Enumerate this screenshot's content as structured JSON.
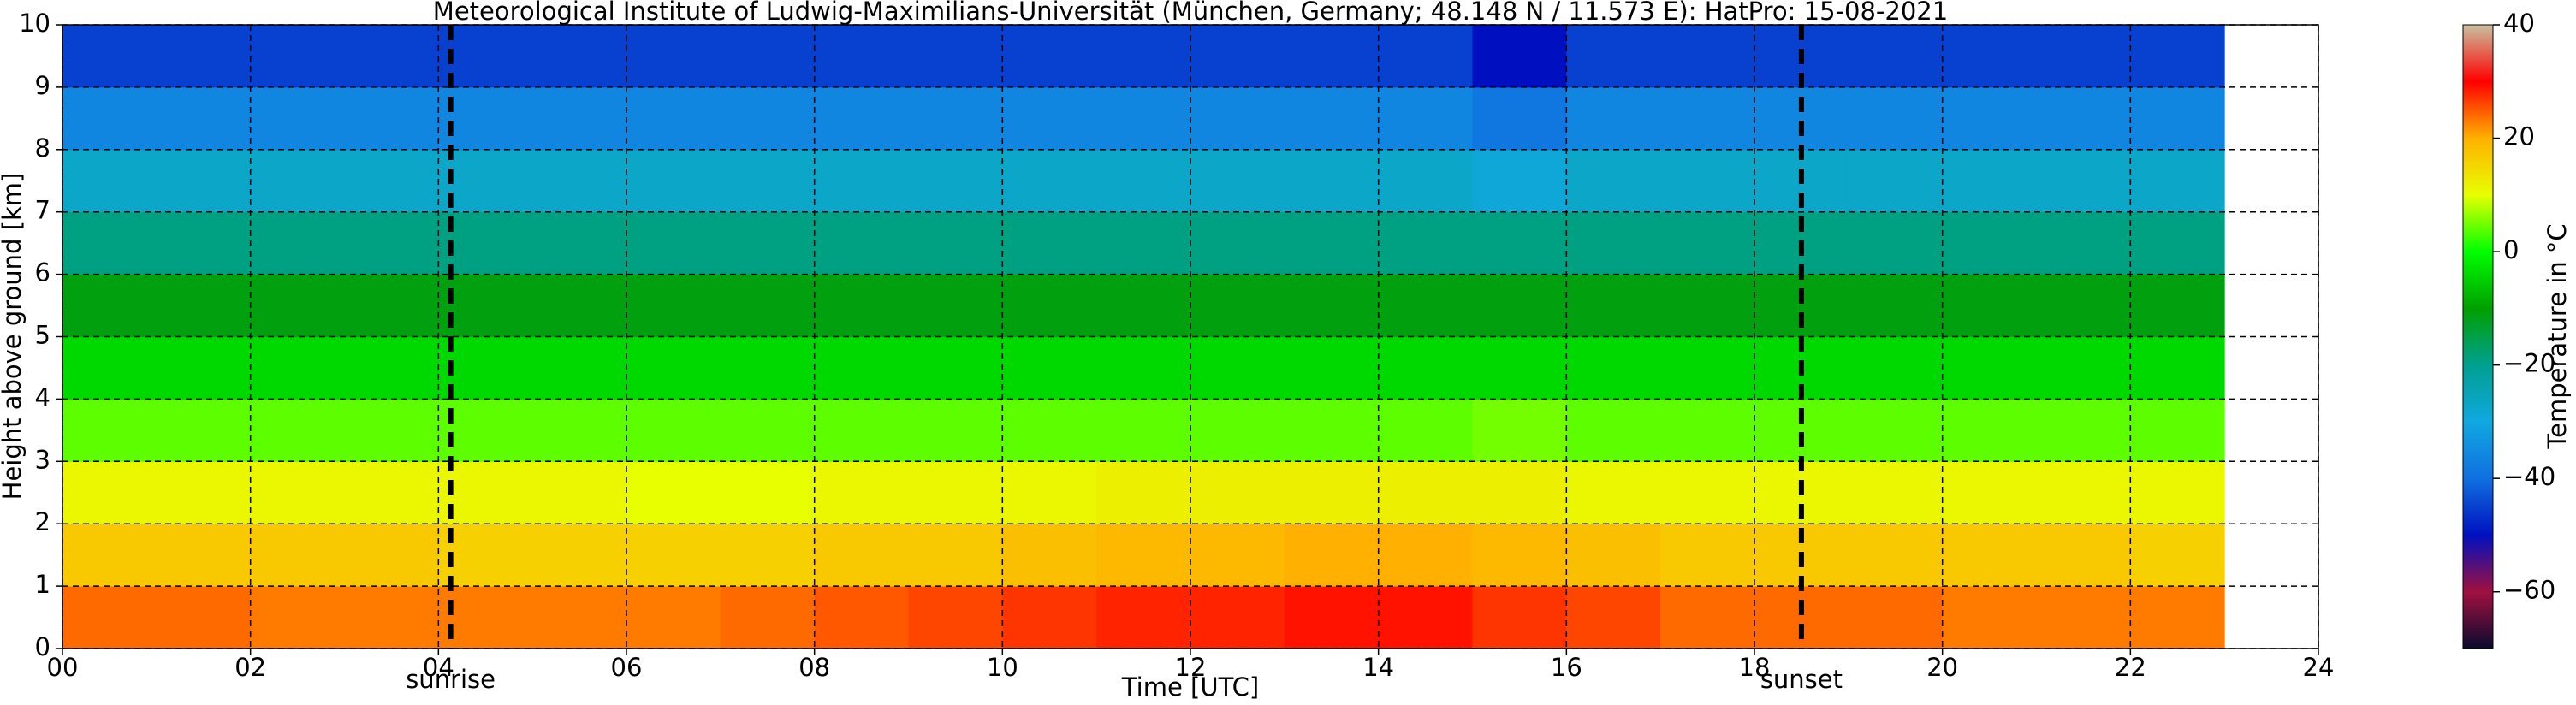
{
  "chart_data": {
    "type": "heatmap",
    "title": "Meteorological Institute of Ludwig-Maximilians-Universität (München, Germany; 48.148 N / 11.573 E):    HatPro: 15-08-2021",
    "xlabel": "Time [UTC]",
    "ylabel": "Height above ground [km]",
    "colorbar_label": "Temperature in °C",
    "x_bins": [
      0,
      1,
      2,
      3,
      4,
      5,
      6,
      7,
      8,
      9,
      10,
      11,
      12,
      13,
      14,
      15,
      16,
      17,
      18,
      19,
      20,
      21,
      22,
      23
    ],
    "y_bins": [
      0,
      1,
      2,
      3,
      4,
      5,
      6,
      7,
      8,
      9,
      10
    ],
    "z": [
      [
        24,
        24,
        23,
        23,
        23,
        23,
        23,
        24,
        25,
        26,
        27,
        28,
        28,
        29,
        29,
        27,
        26,
        24,
        24,
        24,
        23,
        23,
        23
      ],
      [
        17,
        17,
        17,
        17,
        16,
        16,
        16,
        16,
        17,
        17,
        18,
        19,
        19,
        20,
        20,
        19,
        18,
        17,
        17,
        17,
        17,
        17,
        16
      ],
      [
        11,
        11,
        11,
        11,
        11,
        11,
        10,
        10,
        11,
        11,
        11,
        12,
        12,
        12,
        12,
        12,
        11,
        11,
        11,
        11,
        11,
        11,
        11
      ],
      [
        4,
        4,
        4,
        4,
        4,
        4,
        4,
        4,
        4,
        4,
        4,
        4,
        4,
        4,
        4,
        5,
        4,
        4,
        4,
        4,
        4,
        4,
        4
      ],
      [
        -4,
        -4,
        -4,
        -4,
        -4,
        -4,
        -4,
        -4,
        -4,
        -4,
        -4,
        -4,
        -4,
        -4,
        -4,
        -4,
        -4,
        -4,
        -4,
        -4,
        -4,
        -4,
        -4
      ],
      [
        -11,
        -11,
        -11,
        -11,
        -11,
        -11,
        -11,
        -11,
        -11,
        -11,
        -11,
        -11,
        -11,
        -11,
        -11,
        -11,
        -11,
        -11,
        -11,
        -11,
        -11,
        -11,
        -11
      ],
      [
        -19,
        -19,
        -19,
        -19,
        -19,
        -19,
        -19,
        -19,
        -19,
        -19,
        -19,
        -19,
        -19,
        -19,
        -19,
        -19,
        -19,
        -19,
        -19,
        -19,
        -19,
        -19,
        -19
      ],
      [
        -27,
        -27,
        -27,
        -27,
        -27,
        -27,
        -27,
        -27,
        -27,
        -27,
        -27,
        -27,
        -27,
        -27,
        -27,
        -29,
        -27,
        -27,
        -27,
        -27,
        -27,
        -27,
        -27
      ],
      [
        -36,
        -36,
        -36,
        -36,
        -36,
        -36,
        -36,
        -36,
        -36,
        -36,
        -36,
        -36,
        -36,
        -36,
        -36,
        -39,
        -36,
        -36,
        -36,
        -36,
        -36,
        -36,
        -36
      ],
      [
        -45,
        -45,
        -45,
        -45,
        -45,
        -45,
        -45,
        -45,
        -45,
        -45,
        -45,
        -45,
        -45,
        -45,
        -45,
        -50,
        -45,
        -45,
        -45,
        -45,
        -45,
        -45,
        -45
      ]
    ],
    "xlim": [
      0,
      24
    ],
    "ylim": [
      0,
      10
    ],
    "zlim": [
      -70,
      40
    ],
    "xticks": [
      {
        "value": 0,
        "label": "00"
      },
      {
        "value": 2,
        "label": "02"
      },
      {
        "value": 4,
        "label": "04"
      },
      {
        "value": 6,
        "label": "06"
      },
      {
        "value": 8,
        "label": "08"
      },
      {
        "value": 10,
        "label": "10"
      },
      {
        "value": 12,
        "label": "12"
      },
      {
        "value": 14,
        "label": "14"
      },
      {
        "value": 16,
        "label": "16"
      },
      {
        "value": 18,
        "label": "18"
      },
      {
        "value": 20,
        "label": "20"
      },
      {
        "value": 22,
        "label": "22"
      },
      {
        "value": 24,
        "label": "24"
      }
    ],
    "yticks": [
      0,
      1,
      2,
      3,
      4,
      5,
      6,
      7,
      8,
      9,
      10
    ],
    "zticks": [
      {
        "value": -60,
        "label": "−60"
      },
      {
        "value": -40,
        "label": "−40"
      },
      {
        "value": -20,
        "label": "−20"
      },
      0,
      20,
      40
    ],
    "colorscale": [
      "#0a0a2e",
      "#a01040",
      "#0010c0",
      "#1070e0",
      "#10a8e0",
      "#00a090",
      "#00a000",
      "#00ff00",
      "#e8ff00",
      "#ffb000",
      "#ff0000",
      "#c8c0a0"
    ],
    "grid": true,
    "annotations": [
      {
        "x": 4.13,
        "label": "sunrise"
      },
      {
        "x": 18.5,
        "label": "sunset"
      }
    ]
  }
}
